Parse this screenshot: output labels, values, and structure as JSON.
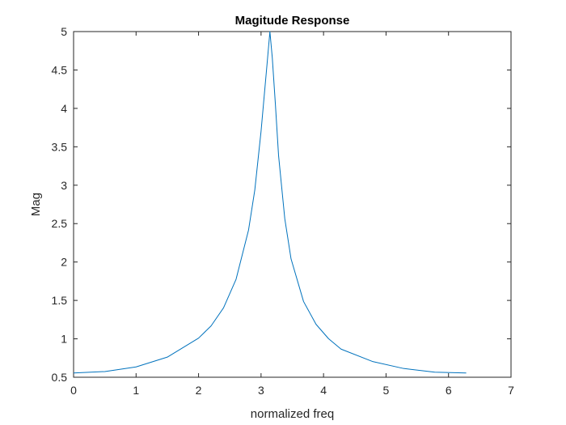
{
  "chart_data": {
    "type": "line",
    "title": "Magitude Response",
    "xlabel": "normalized freq",
    "ylabel": "Mag",
    "xlim": [
      0,
      7
    ],
    "ylim": [
      0.5,
      5
    ],
    "x_ticks": [
      "0",
      "1",
      "2",
      "3",
      "4",
      "5",
      "6",
      "7"
    ],
    "y_ticks": [
      "0.5",
      "1",
      "1.5",
      "2",
      "2.5",
      "3",
      "3.5",
      "4",
      "4.5",
      "5"
    ],
    "grid": false,
    "series": [
      {
        "color": "#0072bd",
        "x": [
          0,
          0.5,
          1.0,
          1.5,
          2.0,
          2.2,
          2.4,
          2.6,
          2.8,
          2.9,
          3.0,
          3.05,
          3.1,
          3.1416,
          3.18,
          3.23,
          3.28,
          3.38,
          3.48,
          3.68,
          3.88,
          4.08,
          4.28,
          4.78,
          5.28,
          5.78,
          6.2832
        ],
        "y": [
          0.556,
          0.574,
          0.634,
          0.762,
          1.009,
          1.168,
          1.404,
          1.775,
          2.417,
          2.938,
          3.702,
          4.158,
          4.614,
          5.0,
          4.657,
          4.047,
          3.388,
          2.562,
          2.041,
          1.486,
          1.189,
          1.002,
          0.866,
          0.706,
          0.614,
          0.566,
          0.556
        ]
      }
    ]
  }
}
